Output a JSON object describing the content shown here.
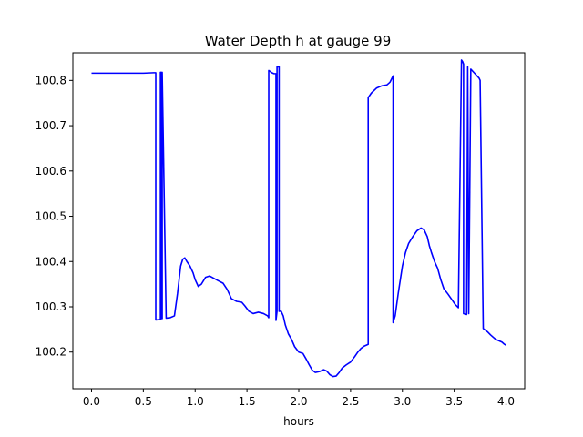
{
  "chart_data": {
    "type": "line",
    "title": "Water Depth h at gauge 99",
    "xlabel": "hours",
    "ylabel": "",
    "xlim": [
      -0.18,
      4.18
    ],
    "ylim": [
      100.119,
      100.861
    ],
    "xticks": [
      0.0,
      0.5,
      1.0,
      1.5,
      2.0,
      2.5,
      3.0,
      3.5,
      4.0
    ],
    "xtick_labels": [
      "0.0",
      "0.5",
      "1.0",
      "1.5",
      "2.0",
      "2.5",
      "3.0",
      "3.5",
      "4.0"
    ],
    "yticks": [
      100.2,
      100.3,
      100.4,
      100.5,
      100.6,
      100.7,
      100.8
    ],
    "ytick_labels": [
      "100.2",
      "100.3",
      "100.4",
      "100.5",
      "100.6",
      "100.7",
      "100.8"
    ],
    "grid": false,
    "series": [
      {
        "color": "#0000ff",
        "x": [
          0.0,
          0.1,
          0.2,
          0.3,
          0.4,
          0.5,
          0.6,
          0.62,
          0.62,
          0.66,
          0.665,
          0.665,
          0.675,
          0.675,
          0.682,
          0.682,
          0.72,
          0.76,
          0.8,
          0.83,
          0.86,
          0.88,
          0.9,
          0.92,
          0.95,
          0.98,
          1.0,
          1.03,
          1.06,
          1.1,
          1.14,
          1.18,
          1.22,
          1.27,
          1.31,
          1.35,
          1.4,
          1.45,
          1.48,
          1.52,
          1.56,
          1.61,
          1.66,
          1.7,
          1.71,
          1.71,
          1.74,
          1.76,
          1.77,
          1.78,
          1.78,
          1.79,
          1.79,
          1.8,
          1.81,
          1.81,
          1.83,
          1.85,
          1.87,
          1.9,
          1.93,
          1.96,
          2.0,
          2.04,
          2.07,
          2.1,
          2.13,
          2.16,
          2.2,
          2.24,
          2.27,
          2.3,
          2.33,
          2.36,
          2.39,
          2.42,
          2.46,
          2.5,
          2.54,
          2.57,
          2.6,
          2.63,
          2.67,
          2.67,
          2.7,
          2.75,
          2.8,
          2.85,
          2.88,
          2.91,
          2.91,
          2.93,
          2.96,
          3.0,
          3.03,
          3.06,
          3.1,
          3.14,
          3.18,
          3.21,
          3.24,
          3.26,
          3.28,
          3.31,
          3.34,
          3.37,
          3.4,
          3.44,
          3.48,
          3.51,
          3.54,
          3.57,
          3.58,
          3.59,
          3.59,
          3.62,
          3.63,
          3.63,
          3.64,
          3.64,
          3.66,
          3.7,
          3.74,
          3.75,
          3.75,
          3.78,
          3.82,
          3.85,
          3.88,
          3.9,
          3.93,
          3.96,
          3.98,
          4.0
        ],
        "y": [
          100.816,
          100.816,
          100.816,
          100.816,
          100.816,
          100.816,
          100.817,
          100.817,
          100.271,
          100.272,
          100.272,
          100.818,
          100.818,
          100.274,
          100.274,
          100.818,
          100.275,
          100.276,
          100.28,
          100.33,
          100.39,
          100.405,
          100.408,
          100.4,
          100.39,
          100.375,
          100.36,
          100.345,
          100.35,
          100.365,
          100.368,
          100.363,
          100.358,
          100.352,
          100.338,
          100.318,
          100.312,
          100.31,
          100.302,
          100.29,
          100.285,
          100.288,
          100.285,
          100.28,
          100.276,
          100.822,
          100.817,
          100.815,
          100.815,
          100.815,
          100.27,
          100.29,
          100.83,
          100.83,
          100.83,
          100.29,
          100.29,
          100.28,
          100.26,
          100.24,
          100.228,
          100.212,
          100.2,
          100.197,
          100.185,
          100.172,
          100.16,
          100.155,
          100.157,
          100.161,
          100.158,
          100.15,
          100.146,
          100.147,
          100.155,
          100.165,
          100.172,
          100.178,
          100.19,
          100.2,
          100.208,
          100.213,
          100.217,
          100.762,
          100.772,
          100.783,
          100.788,
          100.79,
          100.796,
          100.81,
          100.265,
          100.28,
          100.33,
          100.39,
          100.42,
          100.44,
          100.455,
          100.468,
          100.474,
          100.47,
          100.455,
          100.435,
          100.42,
          100.4,
          100.385,
          100.36,
          100.34,
          100.328,
          100.315,
          100.305,
          100.298,
          100.845,
          100.842,
          100.836,
          100.285,
          100.283,
          100.83,
          100.83,
          100.285,
          100.285,
          100.825,
          100.815,
          100.805,
          100.8,
          100.8,
          100.252,
          100.245,
          100.238,
          100.232,
          100.228,
          100.225,
          100.222,
          100.218,
          100.215
        ]
      }
    ]
  }
}
